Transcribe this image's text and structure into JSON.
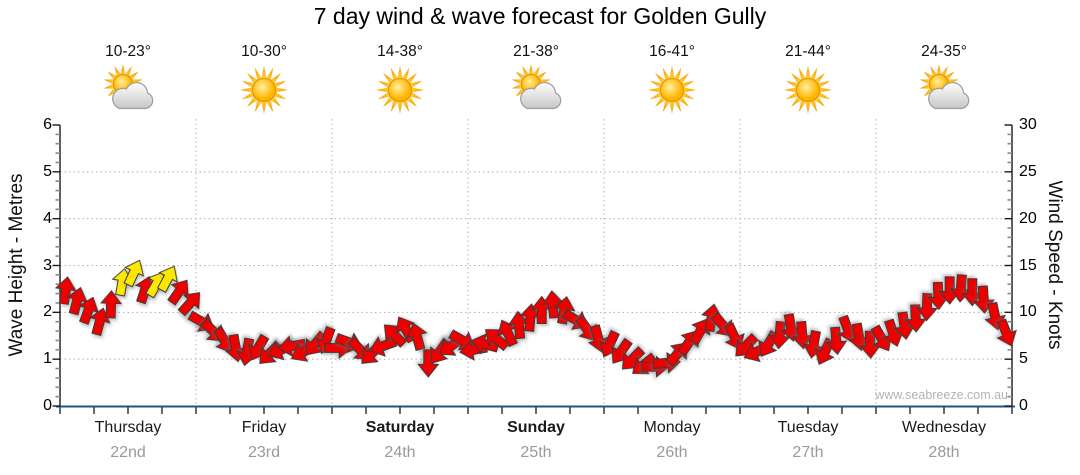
{
  "title": "7 day wind & wave forecast for Golden Gully",
  "watermark": "www.seabreeze.com.au",
  "days": [
    {
      "name": "Thursday",
      "date": "22nd",
      "temp": "10-23°",
      "icon": "sun-cloud",
      "bold": false
    },
    {
      "name": "Friday",
      "date": "23rd",
      "temp": "10-30°",
      "icon": "sun",
      "bold": false
    },
    {
      "name": "Saturday",
      "date": "24th",
      "temp": "14-38°",
      "icon": "sun",
      "bold": true
    },
    {
      "name": "Sunday",
      "date": "25th",
      "temp": "21-38°",
      "icon": "sun-cloud",
      "bold": true
    },
    {
      "name": "Monday",
      "date": "26th",
      "temp": "16-41°",
      "icon": "sun",
      "bold": false
    },
    {
      "name": "Tuesday",
      "date": "27th",
      "temp": "21-44°",
      "icon": "sun",
      "bold": false
    },
    {
      "name": "Wednesday",
      "date": "28th",
      "temp": "24-35°",
      "icon": "sun-cloud",
      "bold": false
    }
  ],
  "chart_data": {
    "type": "wind-arrow-series",
    "title": "7 day wind & wave forecast for Golden Gully",
    "left_axis": {
      "label": "Wave Height - Metres",
      "min": 0,
      "max": 6,
      "major_step": 1,
      "minor_step": 0.2
    },
    "right_axis": {
      "label": "Wind Speed - Knots",
      "min": 0,
      "max": 30,
      "major_step": 5,
      "minor_step": 1
    },
    "grid": {
      "horizontal_at": [
        1,
        2,
        3,
        4,
        5
      ],
      "vertical": "day-boundaries",
      "style": "dotted"
    },
    "legend": "none",
    "colors": {
      "arrow_strong": "#ee0000",
      "arrow_moderate": "#ffe800",
      "arrow_outline": "#3a3a3a",
      "x_axis": "#1f5380",
      "y_axis": "#1a1a1a",
      "grid": "#b0b0b0",
      "minor_tick": "#888888",
      "date_text": "#9a9a9a"
    },
    "points_per_day": 12,
    "series": [
      {
        "day": "Thursday",
        "knots": [
          12.3,
          11.2,
          10.2,
          9.0,
          10.8,
          13.2,
          14.2,
          12.4,
          13.0,
          13.6,
          12.2,
          11.0
        ],
        "dir": [
          8,
          15,
          20,
          15,
          2,
          10,
          25,
          18,
          30,
          28,
          35,
          42
        ],
        "color": [
          "r",
          "r",
          "r",
          "r",
          "r",
          "y",
          "y",
          "r",
          "y",
          "y",
          "r",
          "r"
        ]
      },
      {
        "day": "Friday",
        "knots": [
          9.0,
          8.0,
          7.0,
          6.2,
          5.8,
          6.2,
          5.6,
          6.0,
          6.4,
          5.8,
          6.6,
          7.0
        ],
        "dir": [
          120,
          135,
          150,
          170,
          190,
          210,
          225,
          245,
          260,
          240,
          220,
          200
        ],
        "color": [
          "r",
          "r",
          "r",
          "r",
          "r",
          "r",
          "r",
          "r",
          "r",
          "r",
          "r",
          "r"
        ]
      },
      {
        "day": "Saturday",
        "knots": [
          6.2,
          6.8,
          6.0,
          5.6,
          6.4,
          7.6,
          8.2,
          7.4,
          4.6,
          5.8,
          6.4,
          7.0
        ],
        "dir": [
          90,
          110,
          135,
          225,
          250,
          315,
          330,
          345,
          180,
          215,
          235,
          120
        ],
        "color": [
          "r",
          "r",
          "r",
          "r",
          "r",
          "r",
          "r",
          "r",
          "r",
          "r",
          "r",
          "r"
        ]
      },
      {
        "day": "Sunday",
        "knots": [
          6.0,
          6.6,
          7.2,
          7.8,
          8.6,
          9.4,
          10.2,
          10.8,
          10.2,
          9.2,
          8.2,
          7.2
        ],
        "dir": [
          260,
          285,
          310,
          335,
          355,
          5,
          0,
          355,
          10,
          120,
          145,
          165
        ],
        "color": [
          "r",
          "r",
          "r",
          "r",
          "r",
          "r",
          "r",
          "r",
          "r",
          "r",
          "r",
          "r"
        ]
      },
      {
        "day": "Monday",
        "knots": [
          6.6,
          5.8,
          5.0,
          4.4,
          4.2,
          4.6,
          5.6,
          6.8,
          8.0,
          9.4,
          8.6,
          7.4
        ],
        "dir": [
          205,
          215,
          225,
          232,
          90,
          85,
          40,
          35,
          30,
          10,
          140,
          155
        ],
        "color": [
          "r",
          "r",
          "r",
          "r",
          "r",
          "r",
          "r",
          "r",
          "r",
          "r",
          "r",
          "r"
        ]
      },
      {
        "day": "Tuesday",
        "knots": [
          6.4,
          5.8,
          6.6,
          7.6,
          8.4,
          7.6,
          6.6,
          5.8,
          7.0,
          8.2,
          7.4,
          6.6
        ],
        "dir": [
          225,
          245,
          210,
          185,
          170,
          175,
          190,
          205,
          175,
          160,
          170,
          178
        ],
        "color": [
          "r",
          "r",
          "r",
          "r",
          "r",
          "r",
          "r",
          "r",
          "r",
          "r",
          "r",
          "r"
        ]
      },
      {
        "day": "Wednesday",
        "knots": [
          7.2,
          7.8,
          8.6,
          9.4,
          10.6,
          11.8,
          12.4,
          12.6,
          12.2,
          11.4,
          9.6,
          7.8
        ],
        "dir": [
          150,
          162,
          172,
          178,
          182,
          178,
          180,
          184,
          180,
          176,
          168,
          158
        ],
        "color": [
          "r",
          "r",
          "r",
          "r",
          "r",
          "r",
          "r",
          "r",
          "r",
          "r",
          "r",
          "r"
        ]
      }
    ]
  }
}
